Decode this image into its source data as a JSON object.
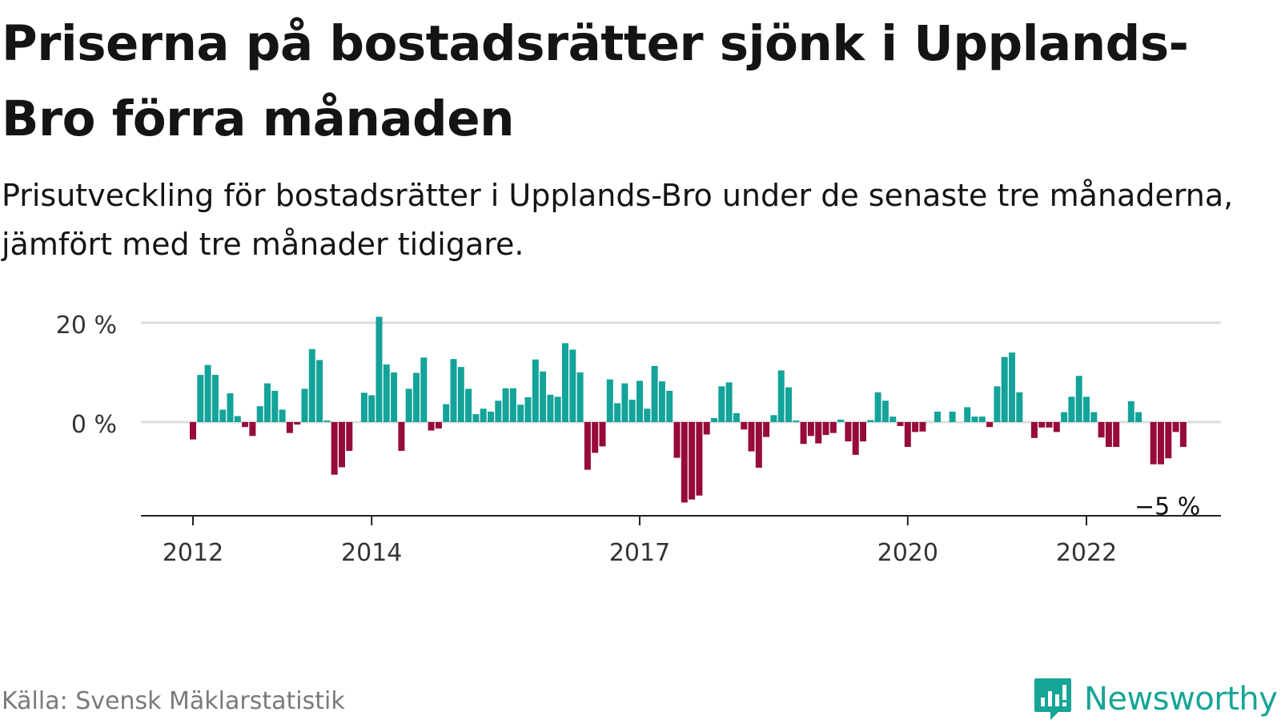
{
  "title": "Priserna på bostadsrätter sjönk i Upplands-Bro förra månaden",
  "subtitle": "Prisutveckling för bostadsrätter i Upplands-Bro under de senaste tre månaderna, jämfört med tre månader tidigare.",
  "source": "Källa: Svensk Mäklarstatistik",
  "brand": "Newsworthy",
  "colors": {
    "positive": "#13a39a",
    "negative": "#970a3c",
    "grid": "#dcdcdc",
    "axis": "#222222",
    "brand": "#16a596"
  },
  "chart_data": {
    "type": "bar",
    "y_ticks": [
      {
        "value": 0,
        "label": "0 %"
      },
      {
        "value": 20,
        "label": "20 %"
      }
    ],
    "x_ticks": [
      {
        "index": 0,
        "label": "2012"
      },
      {
        "index": 24,
        "label": "2014"
      },
      {
        "index": 60,
        "label": "2017"
      },
      {
        "index": 96,
        "label": "2020"
      },
      {
        "index": 120,
        "label": "2022"
      }
    ],
    "ylim": [
      -19,
      20
    ],
    "annotation": {
      "index": 131,
      "label": "−5 %"
    },
    "values": [
      -3.5,
      9.5,
      11.5,
      9.5,
      2.5,
      5.8,
      1.2,
      -1.0,
      -2.8,
      3.2,
      7.8,
      6.3,
      2.5,
      -2.2,
      -0.5,
      6.7,
      14.7,
      12.5,
      0.3,
      -10.6,
      -9.1,
      -5.8,
      0.0,
      5.9,
      5.4,
      21.2,
      11.6,
      10.0,
      -5.8,
      6.7,
      9.9,
      13.0,
      -1.7,
      -1.3,
      3.6,
      12.7,
      11.1,
      6.7,
      1.6,
      2.7,
      2.1,
      4.3,
      6.8,
      6.8,
      3.5,
      5.0,
      12.6,
      10.2,
      5.5,
      5.1,
      15.9,
      14.6,
      10.0,
      -9.6,
      -6.2,
      -4.9,
      8.6,
      3.8,
      7.8,
      4.5,
      8.3,
      2.7,
      11.3,
      8.2,
      6.3,
      -7.2,
      -16.2,
      -15.6,
      -14.8,
      -2.5,
      0.8,
      7.2,
      8.0,
      1.8,
      -1.5,
      -5.9,
      -9.2,
      -3.0,
      1.4,
      10.4,
      7.0,
      0.3,
      -4.4,
      -2.8,
      -4.3,
      -2.6,
      -2.2,
      0.5,
      -3.9,
      -6.6,
      -3.9,
      0.4,
      6.0,
      4.3,
      1.1,
      -0.8,
      -5.0,
      -2.0,
      -1.9,
      0.0,
      2.1,
      0.0,
      2.1,
      0.0,
      3.0,
      1.1,
      1.1,
      -1.0,
      7.2,
      13.1,
      14.0,
      6.0,
      0.0,
      -3.2,
      -1.1,
      -1.1,
      -2.0,
      2.0,
      5.1,
      9.3,
      5.1,
      2.0,
      -3.1,
      -5.0,
      -5.0,
      0.0,
      4.2,
      2.0,
      0.0,
      -8.5,
      -8.5,
      -7.3,
      -2.0,
      -5.0
    ]
  }
}
